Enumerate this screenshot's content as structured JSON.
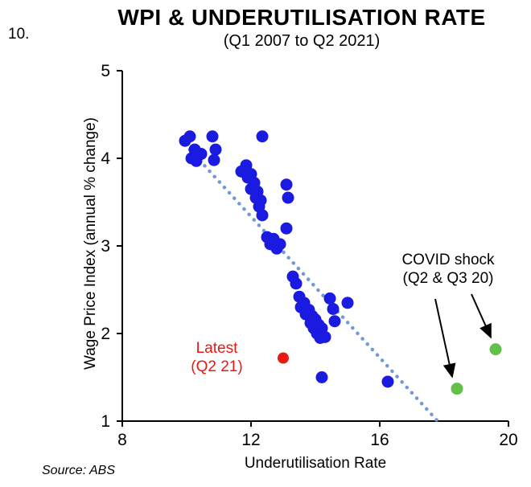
{
  "figure_number": "10.",
  "header": {
    "title": "WPI & UNDERUTILISATION RATE",
    "subtitle": "(Q1 2007 to Q2 2021)"
  },
  "footer": {
    "source": "Source: ABS"
  },
  "annotations": {
    "covid": {
      "line1": "COVID shock",
      "line2": "(Q2 & Q3 20)"
    },
    "latest": {
      "line1": "Latest",
      "line2": "(Q2 21)"
    }
  },
  "chart_data": {
    "type": "scatter",
    "title": "WPI & UNDERUTILISATION RATE",
    "subtitle": "(Q1 2007 to Q2 2021)",
    "xlabel": "Underutilisation Rate",
    "ylabel": "Wage Price Index (annual % change)",
    "xlim": [
      8,
      20
    ],
    "ylim": [
      1,
      5
    ],
    "xticks": [
      8,
      12,
      16,
      20
    ],
    "yticks": [
      1,
      2,
      3,
      4,
      5
    ],
    "grid": false,
    "legend": "none",
    "series": [
      {
        "name": "quarterly-observations",
        "color": "#1a1ae0",
        "marker_radius": 7.5,
        "points": [
          [
            9.95,
            4.2
          ],
          [
            10.1,
            4.25
          ],
          [
            10.15,
            4.0
          ],
          [
            10.25,
            4.1
          ],
          [
            10.3,
            3.97
          ],
          [
            10.45,
            4.05
          ],
          [
            10.8,
            4.25
          ],
          [
            10.9,
            4.1
          ],
          [
            10.85,
            3.98
          ],
          [
            12.35,
            4.25
          ],
          [
            11.7,
            3.85
          ],
          [
            11.85,
            3.92
          ],
          [
            11.9,
            3.78
          ],
          [
            12.0,
            3.82
          ],
          [
            12.0,
            3.65
          ],
          [
            12.1,
            3.72
          ],
          [
            12.15,
            3.55
          ],
          [
            12.2,
            3.62
          ],
          [
            12.25,
            3.45
          ],
          [
            12.3,
            3.52
          ],
          [
            12.35,
            3.35
          ],
          [
            13.1,
            3.7
          ],
          [
            13.15,
            3.55
          ],
          [
            12.5,
            3.1
          ],
          [
            12.6,
            3.02
          ],
          [
            12.7,
            3.08
          ],
          [
            12.8,
            2.97
          ],
          [
            12.9,
            3.02
          ],
          [
            13.1,
            3.2
          ],
          [
            13.3,
            2.65
          ],
          [
            13.4,
            2.57
          ],
          [
            13.5,
            2.42
          ],
          [
            13.55,
            2.3
          ],
          [
            13.65,
            2.35
          ],
          [
            13.7,
            2.22
          ],
          [
            13.8,
            2.27
          ],
          [
            13.85,
            2.12
          ],
          [
            13.9,
            2.2
          ],
          [
            13.95,
            2.06
          ],
          [
            14.0,
            2.16
          ],
          [
            14.05,
            2.0
          ],
          [
            14.1,
            2.1
          ],
          [
            14.15,
            1.95
          ],
          [
            14.2,
            2.06
          ],
          [
            14.3,
            1.96
          ],
          [
            14.45,
            2.4
          ],
          [
            14.55,
            2.28
          ],
          [
            14.6,
            2.14
          ],
          [
            15.0,
            2.35
          ],
          [
            14.2,
            1.5
          ],
          [
            16.25,
            1.45
          ]
        ]
      },
      {
        "name": "latest-q2-21",
        "color": "#e8190f",
        "marker_radius": 7,
        "points": [
          [
            13.0,
            1.72
          ]
        ]
      },
      {
        "name": "covid-shock-q2-q3-20",
        "color": "#62bf4a",
        "marker_radius": 7.5,
        "points": [
          [
            18.4,
            1.37
          ],
          [
            19.6,
            1.82
          ]
        ]
      }
    ],
    "trendline": {
      "style": "dotted",
      "color": "#7099d8",
      "from": [
        10.1,
        4.1
      ],
      "to": [
        17.85,
        0.98
      ]
    }
  }
}
